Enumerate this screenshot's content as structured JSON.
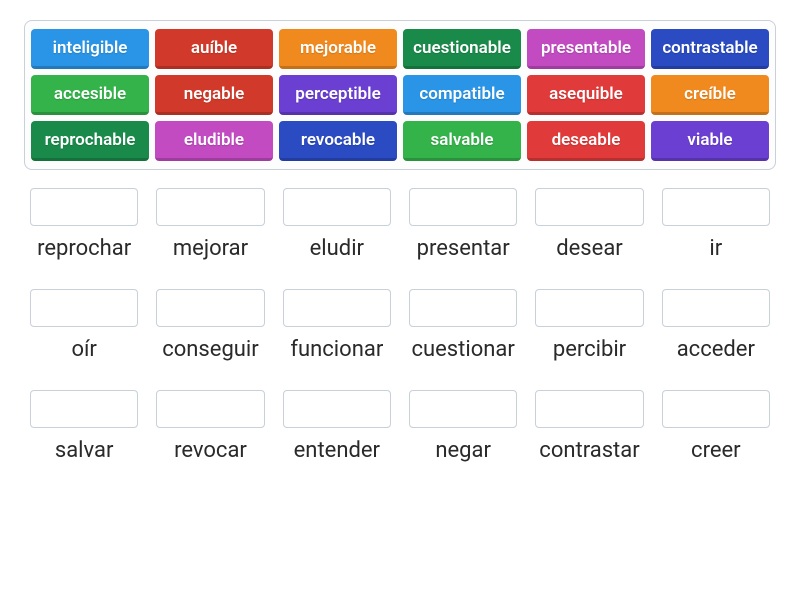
{
  "wordBank": {
    "tiles": [
      {
        "label": "inteligible",
        "color": "#2a95e6"
      },
      {
        "label": "auíble",
        "color": "#d13a2a"
      },
      {
        "label": "mejorable",
        "color": "#f08a1f"
      },
      {
        "label": "cuestionable",
        "color": "#1a8a4a"
      },
      {
        "label": "presentable",
        "color": "#c24bc2"
      },
      {
        "label": "contrastable",
        "color": "#2a4bc2"
      },
      {
        "label": "accesible",
        "color": "#34b34a"
      },
      {
        "label": "negable",
        "color": "#d13a2a"
      },
      {
        "label": "perceptible",
        "color": "#6a3fd1"
      },
      {
        "label": "compatible",
        "color": "#2a95e6"
      },
      {
        "label": "asequible",
        "color": "#e03a3a"
      },
      {
        "label": "creíble",
        "color": "#f08a1f"
      },
      {
        "label": "reprochable",
        "color": "#1a8a4a"
      },
      {
        "label": "eludible",
        "color": "#c24bc2"
      },
      {
        "label": "revocable",
        "color": "#2a4bc2"
      },
      {
        "label": "salvable",
        "color": "#34b34a"
      },
      {
        "label": "deseable",
        "color": "#e03a3a"
      },
      {
        "label": "viable",
        "color": "#6a3fd1"
      }
    ]
  },
  "answers": {
    "verbs": [
      "reprochar",
      "mejorar",
      "eludir",
      "presentar",
      "desear",
      "ir",
      "oír",
      "conseguir",
      "funcionar",
      "cuestionar",
      "percibir",
      "acceder",
      "salvar",
      "revocar",
      "entender",
      "negar",
      "contrastar",
      "creer"
    ]
  },
  "style": {
    "background": "#ffffff",
    "bank_border": "#c8d0d8",
    "tile_text": "#ffffff",
    "verb_text": "#2a2a2a",
    "tile_fontsize": 17,
    "verb_fontsize": 22
  }
}
